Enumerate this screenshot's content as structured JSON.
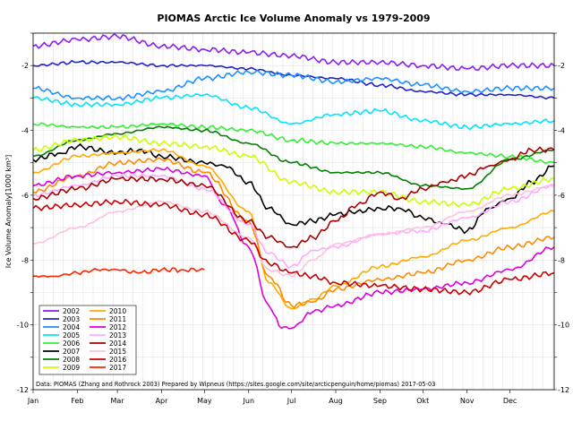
{
  "chart_data": {
    "type": "line",
    "title": "PIOMAS Arctic Ice Volume Anomaly vs 1979-2009",
    "xlabel": "",
    "ylabel": "Ice Volume Anomaly[1000 km³]",
    "xlim": [
      1,
      366
    ],
    "ylim": [
      -12,
      -1
    ],
    "x_tick_labels": [
      "Jan",
      "Feb",
      "Mar",
      "Apr",
      "May",
      "Jun",
      "Jul",
      "Aug",
      "Sep",
      "Okt",
      "Nov",
      "Dec"
    ],
    "x_tick_days": [
      1,
      32,
      60,
      91,
      121,
      152,
      182,
      213,
      244,
      274,
      305,
      335
    ],
    "y_ticks": [
      -2,
      -4,
      -6,
      -8,
      -10,
      -12
    ],
    "grid": true,
    "legend_position": "bottom-left",
    "series": [
      {
        "name": "2002",
        "color": "#8b1ff0",
        "days": [
          1,
          32,
          60,
          91,
          121,
          152,
          182,
          213,
          244,
          274,
          305,
          335,
          366
        ],
        "values": [
          -1.4,
          -1.2,
          -1.1,
          -1.4,
          -1.5,
          -1.6,
          -1.7,
          -1.9,
          -1.9,
          -2.0,
          -2.1,
          -2.0,
          -2.0
        ]
      },
      {
        "name": "2003",
        "color": "#2222cc",
        "days": [
          1,
          32,
          60,
          91,
          121,
          152,
          182,
          213,
          244,
          274,
          305,
          335,
          366
        ],
        "values": [
          -2.0,
          -1.9,
          -1.9,
          -2.0,
          -2.0,
          -2.1,
          -2.3,
          -2.4,
          -2.6,
          -2.8,
          -2.9,
          -2.9,
          -3.0
        ]
      },
      {
        "name": "2004",
        "color": "#1e90ff",
        "days": [
          1,
          32,
          60,
          91,
          121,
          152,
          182,
          213,
          244,
          274,
          305,
          335,
          366
        ],
        "values": [
          -2.7,
          -3.0,
          -3.0,
          -2.8,
          -2.4,
          -2.2,
          -2.3,
          -2.5,
          -2.4,
          -2.6,
          -2.8,
          -2.7,
          -2.7
        ]
      },
      {
        "name": "2005",
        "color": "#00e5ff",
        "days": [
          1,
          32,
          60,
          91,
          121,
          152,
          182,
          213,
          244,
          274,
          305,
          335,
          366
        ],
        "values": [
          -3.0,
          -3.2,
          -3.2,
          -3.0,
          -2.9,
          -3.3,
          -3.8,
          -3.5,
          -3.4,
          -3.7,
          -3.9,
          -3.8,
          -3.7
        ]
      },
      {
        "name": "2006",
        "color": "#33ee33",
        "days": [
          1,
          32,
          60,
          91,
          121,
          152,
          182,
          213,
          244,
          274,
          305,
          335,
          366
        ],
        "values": [
          -3.8,
          -3.9,
          -3.9,
          -3.8,
          -3.9,
          -4.0,
          -4.3,
          -4.4,
          -4.4,
          -4.5,
          -4.7,
          -4.8,
          -5.0
        ]
      },
      {
        "name": "2007",
        "color": "#000000",
        "days": [
          1,
          20,
          32,
          60,
          75,
          91,
          121,
          135,
          152,
          166,
          182,
          197,
          213,
          228,
          244,
          258,
          274,
          290,
          305,
          320,
          335,
          350,
          366
        ],
        "values": [
          -4.9,
          -4.7,
          -4.5,
          -4.7,
          -4.6,
          -4.8,
          -5.0,
          -5.1,
          -5.6,
          -6.4,
          -6.9,
          -6.8,
          -6.6,
          -6.5,
          -6.4,
          -6.4,
          -6.7,
          -6.9,
          -7.1,
          -6.4,
          -6.1,
          -5.6,
          -5.1
        ]
      },
      {
        "name": "2008",
        "color": "#008000",
        "days": [
          1,
          32,
          60,
          91,
          121,
          152,
          182,
          213,
          244,
          274,
          305,
          335,
          366
        ],
        "values": [
          -4.8,
          -4.3,
          -4.1,
          -3.9,
          -4.0,
          -4.4,
          -5.0,
          -5.3,
          -5.3,
          -5.7,
          -5.8,
          -4.9,
          -4.6
        ]
      },
      {
        "name": "2009",
        "color": "#ccff00",
        "days": [
          1,
          32,
          60,
          91,
          121,
          152,
          182,
          213,
          244,
          274,
          305,
          335,
          366
        ],
        "values": [
          -4.6,
          -4.3,
          -4.2,
          -4.4,
          -4.5,
          -4.8,
          -5.6,
          -5.9,
          -5.9,
          -6.2,
          -6.3,
          -5.8,
          -5.5
        ]
      },
      {
        "name": "2010",
        "color": "#ffaa00",
        "days": [
          1,
          32,
          60,
          91,
          121,
          152,
          166,
          182,
          197,
          213,
          244,
          274,
          305,
          335,
          366
        ],
        "values": [
          -5.3,
          -4.8,
          -4.7,
          -4.6,
          -5.1,
          -6.5,
          -8.7,
          -9.5,
          -9.2,
          -8.8,
          -8.2,
          -7.9,
          -7.4,
          -7.0,
          -6.5
        ]
      },
      {
        "name": "2011",
        "color": "#ff8c00",
        "days": [
          1,
          32,
          60,
          91,
          121,
          152,
          166,
          182,
          197,
          213,
          244,
          274,
          305,
          335,
          366
        ],
        "values": [
          -5.9,
          -5.4,
          -5.0,
          -4.9,
          -5.3,
          -6.8,
          -8.5,
          -9.4,
          -9.3,
          -8.9,
          -8.6,
          -8.4,
          -8.0,
          -7.6,
          -7.3
        ]
      },
      {
        "name": "2012",
        "color": "#dd00dd",
        "days": [
          1,
          32,
          60,
          91,
          121,
          135,
          152,
          166,
          175,
          182,
          197,
          213,
          244,
          274,
          305,
          335,
          366
        ],
        "values": [
          -5.7,
          -5.4,
          -5.3,
          -5.2,
          -5.4,
          -6.3,
          -7.6,
          -9.4,
          -10.1,
          -10.1,
          -9.6,
          -9.4,
          -9.0,
          -8.9,
          -8.7,
          -8.3,
          -7.6
        ]
      },
      {
        "name": "2013",
        "color": "#ffaaff",
        "days": [
          1,
          32,
          60,
          91,
          121,
          152,
          166,
          182,
          197,
          213,
          244,
          274,
          305,
          335,
          366
        ],
        "values": [
          -6.0,
          -5.7,
          -5.4,
          -5.4,
          -5.8,
          -6.9,
          -7.8,
          -8.2,
          -7.7,
          -7.6,
          -7.2,
          -7.1,
          -6.7,
          -6.2,
          -5.7
        ]
      },
      {
        "name": "2014",
        "color": "#aa0000",
        "days": [
          1,
          32,
          60,
          91,
          121,
          152,
          166,
          182,
          197,
          213,
          228,
          244,
          258,
          274,
          290,
          305,
          320,
          335,
          350,
          366
        ],
        "values": [
          -6.1,
          -5.8,
          -5.5,
          -5.5,
          -5.7,
          -6.8,
          -7.3,
          -7.6,
          -7.3,
          -6.8,
          -6.3,
          -5.9,
          -6.1,
          -5.8,
          -5.6,
          -5.4,
          -5.1,
          -4.9,
          -4.6,
          -4.6
        ]
      },
      {
        "name": "2015",
        "color": "#ffc0e0",
        "days": [
          1,
          32,
          60,
          91,
          121,
          152,
          166,
          182,
          197,
          213,
          244,
          274,
          305,
          335,
          366
        ],
        "values": [
          -7.5,
          -7.0,
          -6.5,
          -6.2,
          -6.5,
          -7.3,
          -8.3,
          -8.5,
          -8.0,
          -7.5,
          -7.2,
          -7.0,
          -6.5,
          -6.0,
          -5.7
        ]
      },
      {
        "name": "2016",
        "color": "#cc0000",
        "days": [
          1,
          32,
          60,
          91,
          121,
          152,
          166,
          182,
          197,
          213,
          244,
          274,
          305,
          335,
          366
        ],
        "values": [
          -6.4,
          -6.3,
          -6.2,
          -6.3,
          -6.6,
          -7.4,
          -8.1,
          -8.4,
          -8.5,
          -8.7,
          -8.8,
          -8.9,
          -9.0,
          -8.6,
          -8.4
        ]
      },
      {
        "name": "2017",
        "color": "#ff2200",
        "days": [
          1,
          15,
          32,
          46,
          60,
          75,
          91,
          106,
          121
        ],
        "values": [
          -8.5,
          -8.5,
          -8.4,
          -8.3,
          -8.3,
          -8.4,
          -8.3,
          -8.3,
          -8.3
        ]
      }
    ],
    "credit": "Data: PIOMAS (Zhang and Rothrock 2003) Prepared by Wipneus (https://sites.google.com/site/arcticpenguin/home/piomas)    2017-05-03"
  }
}
